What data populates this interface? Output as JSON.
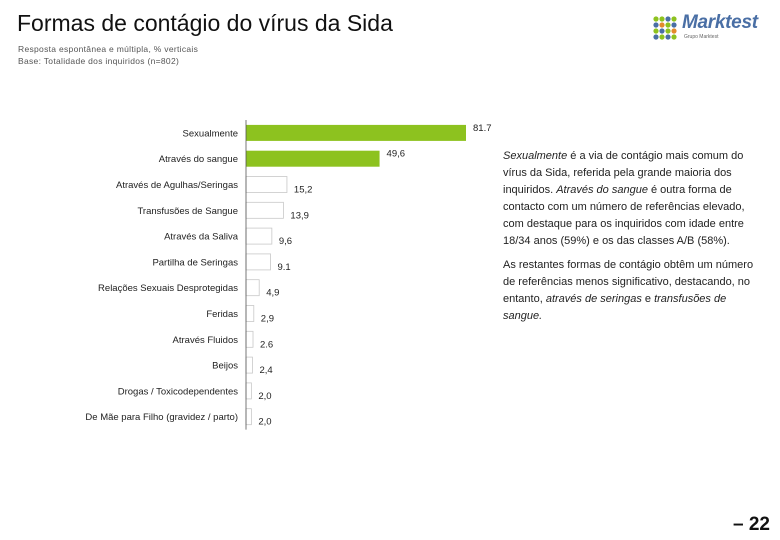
{
  "header": {
    "title": "Formas de contágio do vírus da Sida",
    "subtitle_1": "Resposta espontânea e múltipla, % verticais",
    "subtitle_2": "Base: Totalidade dos inquiridos (n=802)"
  },
  "logo": {
    "name": "Marktest",
    "tagline": "Grupo Marktest"
  },
  "chart_data": {
    "type": "bar",
    "orientation": "horizontal",
    "categories": [
      "Sexualmente",
      "Através do sangue",
      "Através de Agulhas/Seringas",
      "Transfusões de Sangue",
      "Através da Saliva",
      "Partilha de Seringas",
      "Relações Sexuais Desprotegidas",
      "Feridas",
      "Através Fluidos",
      "Beijos",
      "Drogas / Toxicodependentes",
      "De Mãe para Filho (gravidez / parto)"
    ],
    "values": [
      81.7,
      49.6,
      15.2,
      13.9,
      9.6,
      9.1,
      4.9,
      2.9,
      2.6,
      2.4,
      2.0,
      2.0
    ],
    "value_labels": [
      "81.7",
      "49,6",
      "15,2",
      "13,9",
      "9,6",
      "9.1",
      "4,9",
      "2,9",
      "2.6",
      "2,4",
      "2,0",
      "2,0"
    ],
    "highlight_color": "#8dc21f",
    "plain_color": "#ffffff",
    "highlight_count": 2,
    "xlim": [
      0,
      100
    ],
    "grid": false,
    "legend": "none"
  },
  "notes": {
    "p1": [
      {
        "text": "Sexualmente",
        "italic": true
      },
      {
        "text": " é a via de contágio mais comum do vírus da Sida, referida pela grande maioria dos inquiridos. ",
        "italic": false
      },
      {
        "text": "Através do sangue",
        "italic": true
      },
      {
        "text": " é outra forma de contacto com um número de referências elevado, com destaque para os inquiridos com idade entre 18/34 anos (59%) e os das classes A/B (58%).",
        "italic": false
      }
    ],
    "p2": [
      {
        "text": "As restantes formas de contágio obtêm um número de referências menos significativo, destacando, no entanto, ",
        "italic": false
      },
      {
        "text": "através de seringas",
        "italic": true
      },
      {
        "text": " e ",
        "italic": false
      },
      {
        "text": "transfusões de sangue.",
        "italic": true
      }
    ]
  },
  "footer": {
    "page_number": "– 22"
  }
}
